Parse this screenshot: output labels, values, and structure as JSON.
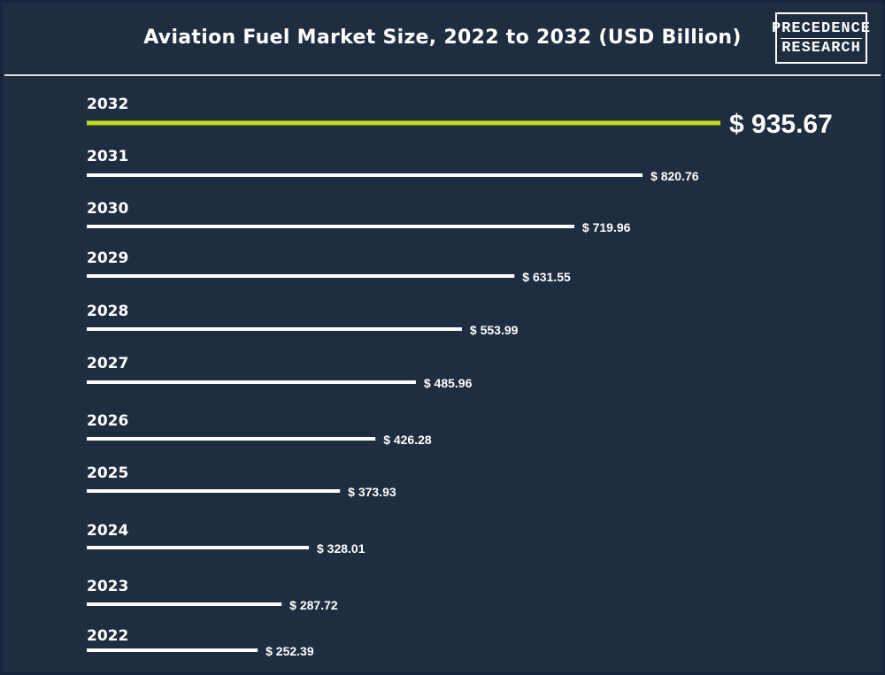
{
  "chart_data": {
    "type": "bar",
    "title": "Aviation Fuel Market Size, 2022 to 2032 (USD Billion)",
    "categories": [
      "2032",
      "2031",
      "2030",
      "2029",
      "2028",
      "2027",
      "2026",
      "2025",
      "2024",
      "2023",
      "2022"
    ],
    "values": [
      935.67,
      820.76,
      719.96,
      631.55,
      553.99,
      485.96,
      426.28,
      373.93,
      328.01,
      287.72,
      252.39
    ],
    "value_labels": [
      "$ 935.67",
      "$ 820.76",
      "$ 719.96",
      "$ 631.55",
      "$ 553.99",
      "$ 485.96",
      "$ 426.28",
      "$ 373.93",
      "$ 328.01",
      "$ 287.72",
      "$ 252.39"
    ],
    "highlight_index": 0,
    "orientation": "horizontal",
    "xlim": [
      0,
      935.67
    ],
    "colors": {
      "bar": "#ffffff",
      "highlight": "#c5dc1a",
      "background": "#1e2d40"
    }
  },
  "logo": {
    "line1": "PRECEDENCE",
    "line2": "RESEARCH"
  }
}
